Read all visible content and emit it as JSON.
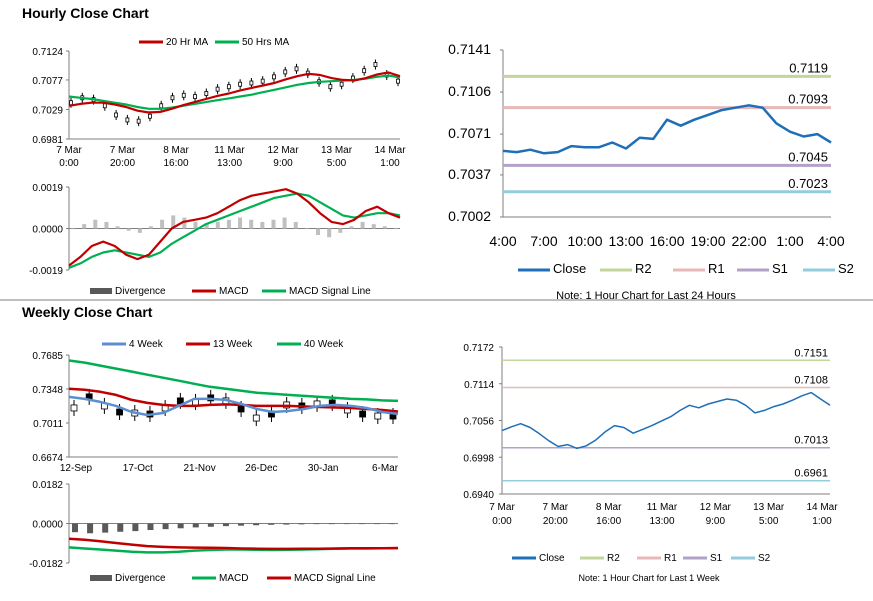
{
  "sections": {
    "hourly_title": "Hourly Close Chart",
    "weekly_title": "Weekly Close Chart"
  },
  "colors": {
    "red": "#c00000",
    "green": "#00b050",
    "blue": "#1f6fb8",
    "gray": "#7f7f7f",
    "r2": "#c3d69b",
    "r1": "#e6b9b8",
    "s1": "#b3a2c7",
    "s2": "#93cddd",
    "close": "#1f6fb8",
    "ma4": "#5b8fd0"
  },
  "chart_data": [
    {
      "id": "hourly_price",
      "type": "line",
      "title": "Hourly Close Chart",
      "legend": [
        "20 Hr MA",
        "50 Hrs MA"
      ],
      "yticks": [
        "0.7124",
        "0.7077",
        "0.7029",
        "0.6981"
      ],
      "ylim": [
        0.6981,
        0.7124
      ],
      "xticks": [
        [
          "7 Mar",
          "0:00"
        ],
        [
          "7 Mar",
          "20:00"
        ],
        [
          "8 Mar",
          "16:00"
        ],
        [
          "11 Mar",
          "13:00"
        ],
        [
          "12 Mar",
          "9:00"
        ],
        [
          "13 Mar",
          "5:00"
        ],
        [
          "14 Mar",
          "1:00"
        ]
      ],
      "series": [
        {
          "name": "Close",
          "values": [
            0.704,
            0.7048,
            0.7045,
            0.7035,
            0.702,
            0.7012,
            0.701,
            0.7018,
            0.7035,
            0.7048,
            0.7052,
            0.705,
            0.7055,
            0.7062,
            0.7066,
            0.707,
            0.7072,
            0.7075,
            0.7082,
            0.709,
            0.7095,
            0.7088,
            0.7074,
            0.7066,
            0.707,
            0.708,
            0.7092,
            0.7102,
            0.7085,
            0.7075
          ]
        },
        {
          "name": "20 Hr MA",
          "values": [
            0.7035,
            0.7038,
            0.704,
            0.704,
            0.7037,
            0.7033,
            0.7027,
            0.7024,
            0.7025,
            0.703,
            0.7036,
            0.7041,
            0.7046,
            0.7051,
            0.7055,
            0.706,
            0.7064,
            0.7068,
            0.7072,
            0.7078,
            0.7083,
            0.7087,
            0.7085,
            0.708,
            0.7077,
            0.7076,
            0.708,
            0.7086,
            0.7089,
            0.7083
          ]
        },
        {
          "name": "50 Hrs MA",
          "values": [
            0.705,
            0.7048,
            0.7046,
            0.7043,
            0.704,
            0.7037,
            0.7033,
            0.703,
            0.703,
            0.7032,
            0.7035,
            0.7038,
            0.7041,
            0.7044,
            0.7047,
            0.705,
            0.7053,
            0.7057,
            0.7061,
            0.7065,
            0.7069,
            0.7072,
            0.7074,
            0.7075,
            0.7076,
            0.7077,
            0.7079,
            0.7082,
            0.7084,
            0.7081
          ]
        }
      ]
    },
    {
      "id": "hourly_macd",
      "type": "bar",
      "legend": [
        "Divergence",
        "MACD",
        "MACD Signal Line"
      ],
      "yticks": [
        "0.0019",
        "0.0000",
        "-0.0019"
      ],
      "ylim": [
        -0.0019,
        0.0019
      ],
      "series": [
        {
          "name": "Divergence",
          "values": [
            0.0,
            0.0002,
            0.0004,
            0.0003,
            0.0001,
            -0.0001,
            -0.0002,
            0.0001,
            0.0004,
            0.0006,
            0.0005,
            0.0003,
            0.0002,
            0.0003,
            0.0004,
            0.0005,
            0.0004,
            0.0003,
            0.0004,
            0.0005,
            0.0003,
            0.0,
            -0.0003,
            -0.0004,
            -0.0002,
            0.0001,
            0.0003,
            0.0002,
            0.0001,
            0.0
          ]
        },
        {
          "name": "MACD",
          "values": [
            -0.0017,
            -0.0013,
            -0.0008,
            -0.0006,
            -0.0008,
            -0.0012,
            -0.0014,
            -0.0012,
            -0.0006,
            0.0,
            0.0003,
            0.0004,
            0.0005,
            0.0007,
            0.001,
            0.0013,
            0.0015,
            0.0016,
            0.0017,
            0.0018,
            0.0016,
            0.0012,
            0.0007,
            0.0003,
            0.0002,
            0.0004,
            0.0008,
            0.001,
            0.0007,
            0.0005
          ]
        },
        {
          "name": "MACD Signal Line",
          "values": [
            -0.0018,
            -0.0016,
            -0.0013,
            -0.0011,
            -0.001,
            -0.0011,
            -0.0012,
            -0.0013,
            -0.0011,
            -0.0007,
            -0.0004,
            -0.0001,
            0.0002,
            0.0004,
            0.0006,
            0.0008,
            0.001,
            0.0012,
            0.0014,
            0.0015,
            0.0016,
            0.0015,
            0.0012,
            0.0009,
            0.0006,
            0.0005,
            0.0006,
            0.0007,
            0.0007,
            0.0006
          ]
        }
      ]
    },
    {
      "id": "hourly_pivot",
      "type": "line",
      "note": "Note: 1 Hour Chart for Last 24 Hours",
      "yticks": [
        "0.7141",
        "0.7106",
        "0.7071",
        "0.7037",
        "0.7002"
      ],
      "ylim": [
        0.7002,
        0.7141
      ],
      "xticks": [
        "4:00",
        "7:00",
        "10:00",
        "13:00",
        "16:00",
        "19:00",
        "22:00",
        "1:00",
        "4:00"
      ],
      "levels": [
        {
          "name": "R2",
          "value": 0.7119,
          "label": "0.7119"
        },
        {
          "name": "R1",
          "value": 0.7093,
          "label": "0.7093"
        },
        {
          "name": "S1",
          "value": 0.7045,
          "label": "0.7045"
        },
        {
          "name": "S2",
          "value": 0.7023,
          "label": "0.7023"
        }
      ],
      "legend": [
        "Close",
        "R2",
        "R1",
        "S1",
        "S2"
      ],
      "series": [
        {
          "name": "Close",
          "values": [
            0.7057,
            0.7056,
            0.7058,
            0.7055,
            0.7056,
            0.7061,
            0.706,
            0.706,
            0.7064,
            0.7059,
            0.7068,
            0.7067,
            0.7083,
            0.7078,
            0.7083,
            0.7087,
            0.7091,
            0.7093,
            0.7095,
            0.7093,
            0.708,
            0.7073,
            0.7069,
            0.7071,
            0.7064
          ]
        }
      ]
    },
    {
      "id": "weekly_price",
      "type": "line",
      "legend": [
        "4 Week",
        "13 Week",
        "40 Week"
      ],
      "yticks": [
        "0.7685",
        "0.7348",
        "0.7011",
        "0.6674"
      ],
      "ylim": [
        0.6674,
        0.7685
      ],
      "xticks": [
        "12-Sep",
        "17-Oct",
        "21-Nov",
        "26-Dec",
        "30-Jan",
        "6-Mar"
      ],
      "series": [
        {
          "name": "Close",
          "values": [
            0.716,
            0.727,
            0.718,
            0.712,
            0.711,
            0.71,
            0.716,
            0.723,
            0.722,
            0.726,
            0.723,
            0.715,
            0.706,
            0.71,
            0.719,
            0.718,
            0.72,
            0.721,
            0.714,
            0.71,
            0.708,
            0.708
          ]
        },
        {
          "name": "4 Week",
          "values": [
            0.727,
            0.725,
            0.722,
            0.718,
            0.712,
            0.709,
            0.711,
            0.718,
            0.725,
            0.725,
            0.724,
            0.72,
            0.715,
            0.712,
            0.713,
            0.715,
            0.718,
            0.719,
            0.718,
            0.716,
            0.712,
            0.71
          ]
        },
        {
          "name": "13 Week",
          "values": [
            0.735,
            0.734,
            0.732,
            0.729,
            0.724,
            0.721,
            0.719,
            0.718,
            0.718,
            0.719,
            0.7195,
            0.719,
            0.718,
            0.718,
            0.718,
            0.7175,
            0.717,
            0.7165,
            0.716,
            0.715,
            0.714,
            0.7125
          ]
        },
        {
          "name": "40 Week",
          "values": [
            0.763,
            0.761,
            0.758,
            0.755,
            0.752,
            0.749,
            0.746,
            0.743,
            0.74,
            0.737,
            0.735,
            0.733,
            0.731,
            0.73,
            0.729,
            0.728,
            0.727,
            0.726,
            0.725,
            0.7245,
            0.7235,
            0.723
          ]
        }
      ]
    },
    {
      "id": "weekly_macd",
      "type": "bar",
      "legend": [
        "Divergence",
        "MACD",
        "MACD Signal Line"
      ],
      "yticks": [
        "0.0182",
        "0.0000",
        "-0.0182"
      ],
      "ylim": [
        -0.0182,
        0.0182
      ],
      "series": [
        {
          "name": "Divergence",
          "values": [
            -0.004,
            -0.0045,
            -0.0042,
            -0.0038,
            -0.0035,
            -0.003,
            -0.0026,
            -0.0022,
            -0.0018,
            -0.0015,
            -0.0012,
            -0.001,
            -0.0008,
            -0.0006,
            -0.0005,
            -0.0004,
            -0.0003,
            -0.0003,
            -0.0002,
            -0.0002,
            -0.0001,
            -0.0001
          ]
        },
        {
          "name": "MACD",
          "values": [
            -0.011,
            -0.0115,
            -0.012,
            -0.0125,
            -0.013,
            -0.0133,
            -0.0133,
            -0.013,
            -0.0125,
            -0.0122,
            -0.012,
            -0.012,
            -0.0121,
            -0.0122,
            -0.0121,
            -0.012,
            -0.0118,
            -0.0116,
            -0.0115,
            -0.0115,
            -0.0114,
            -0.0114
          ]
        },
        {
          "name": "MACD Signal Line",
          "values": [
            -0.007,
            -0.0075,
            -0.0082,
            -0.009,
            -0.0097,
            -0.0104,
            -0.0108,
            -0.011,
            -0.0111,
            -0.0112,
            -0.0113,
            -0.0115,
            -0.0116,
            -0.0117,
            -0.0117,
            -0.0116,
            -0.0116,
            -0.0115,
            -0.0114,
            -0.0114,
            -0.0114,
            -0.0113
          ]
        }
      ]
    },
    {
      "id": "weekly_pivot",
      "type": "line",
      "note": "Note: 1 Hour Chart for Last 1 Week",
      "yticks": [
        "0.7172",
        "0.7114",
        "0.7056",
        "0.6998",
        "0.6940"
      ],
      "ylim": [
        0.694,
        0.7172
      ],
      "xticks": [
        [
          "7 Mar",
          "0:00"
        ],
        [
          "7 Mar",
          "20:00"
        ],
        [
          "8 Mar",
          "16:00"
        ],
        [
          "11 Mar",
          "13:00"
        ],
        [
          "12 Mar",
          "9:00"
        ],
        [
          "13 Mar",
          "5:00"
        ],
        [
          "14 Mar",
          "1:00"
        ]
      ],
      "levels": [
        {
          "name": "R2",
          "value": 0.7151,
          "label": "0.7151"
        },
        {
          "name": "R1",
          "value": 0.7108,
          "label": "0.7108"
        },
        {
          "name": "S1",
          "value": 0.7013,
          "label": "0.7013"
        },
        {
          "name": "S2",
          "value": 0.6961,
          "label": "0.6961"
        }
      ],
      "legend": [
        "Close",
        "R2",
        "R1",
        "S1",
        "S2"
      ],
      "series": [
        {
          "name": "Close",
          "values": [
            0.704,
            0.7046,
            0.7051,
            0.7045,
            0.7035,
            0.7024,
            0.7015,
            0.7018,
            0.7012,
            0.7016,
            0.7025,
            0.7038,
            0.7048,
            0.7045,
            0.7036,
            0.7042,
            0.7048,
            0.7055,
            0.7062,
            0.7072,
            0.708,
            0.7076,
            0.7082,
            0.7086,
            0.709,
            0.7088,
            0.708,
            0.7068,
            0.7072,
            0.7078,
            0.7082,
            0.7088,
            0.7095,
            0.71,
            0.709,
            0.708
          ]
        }
      ]
    }
  ]
}
